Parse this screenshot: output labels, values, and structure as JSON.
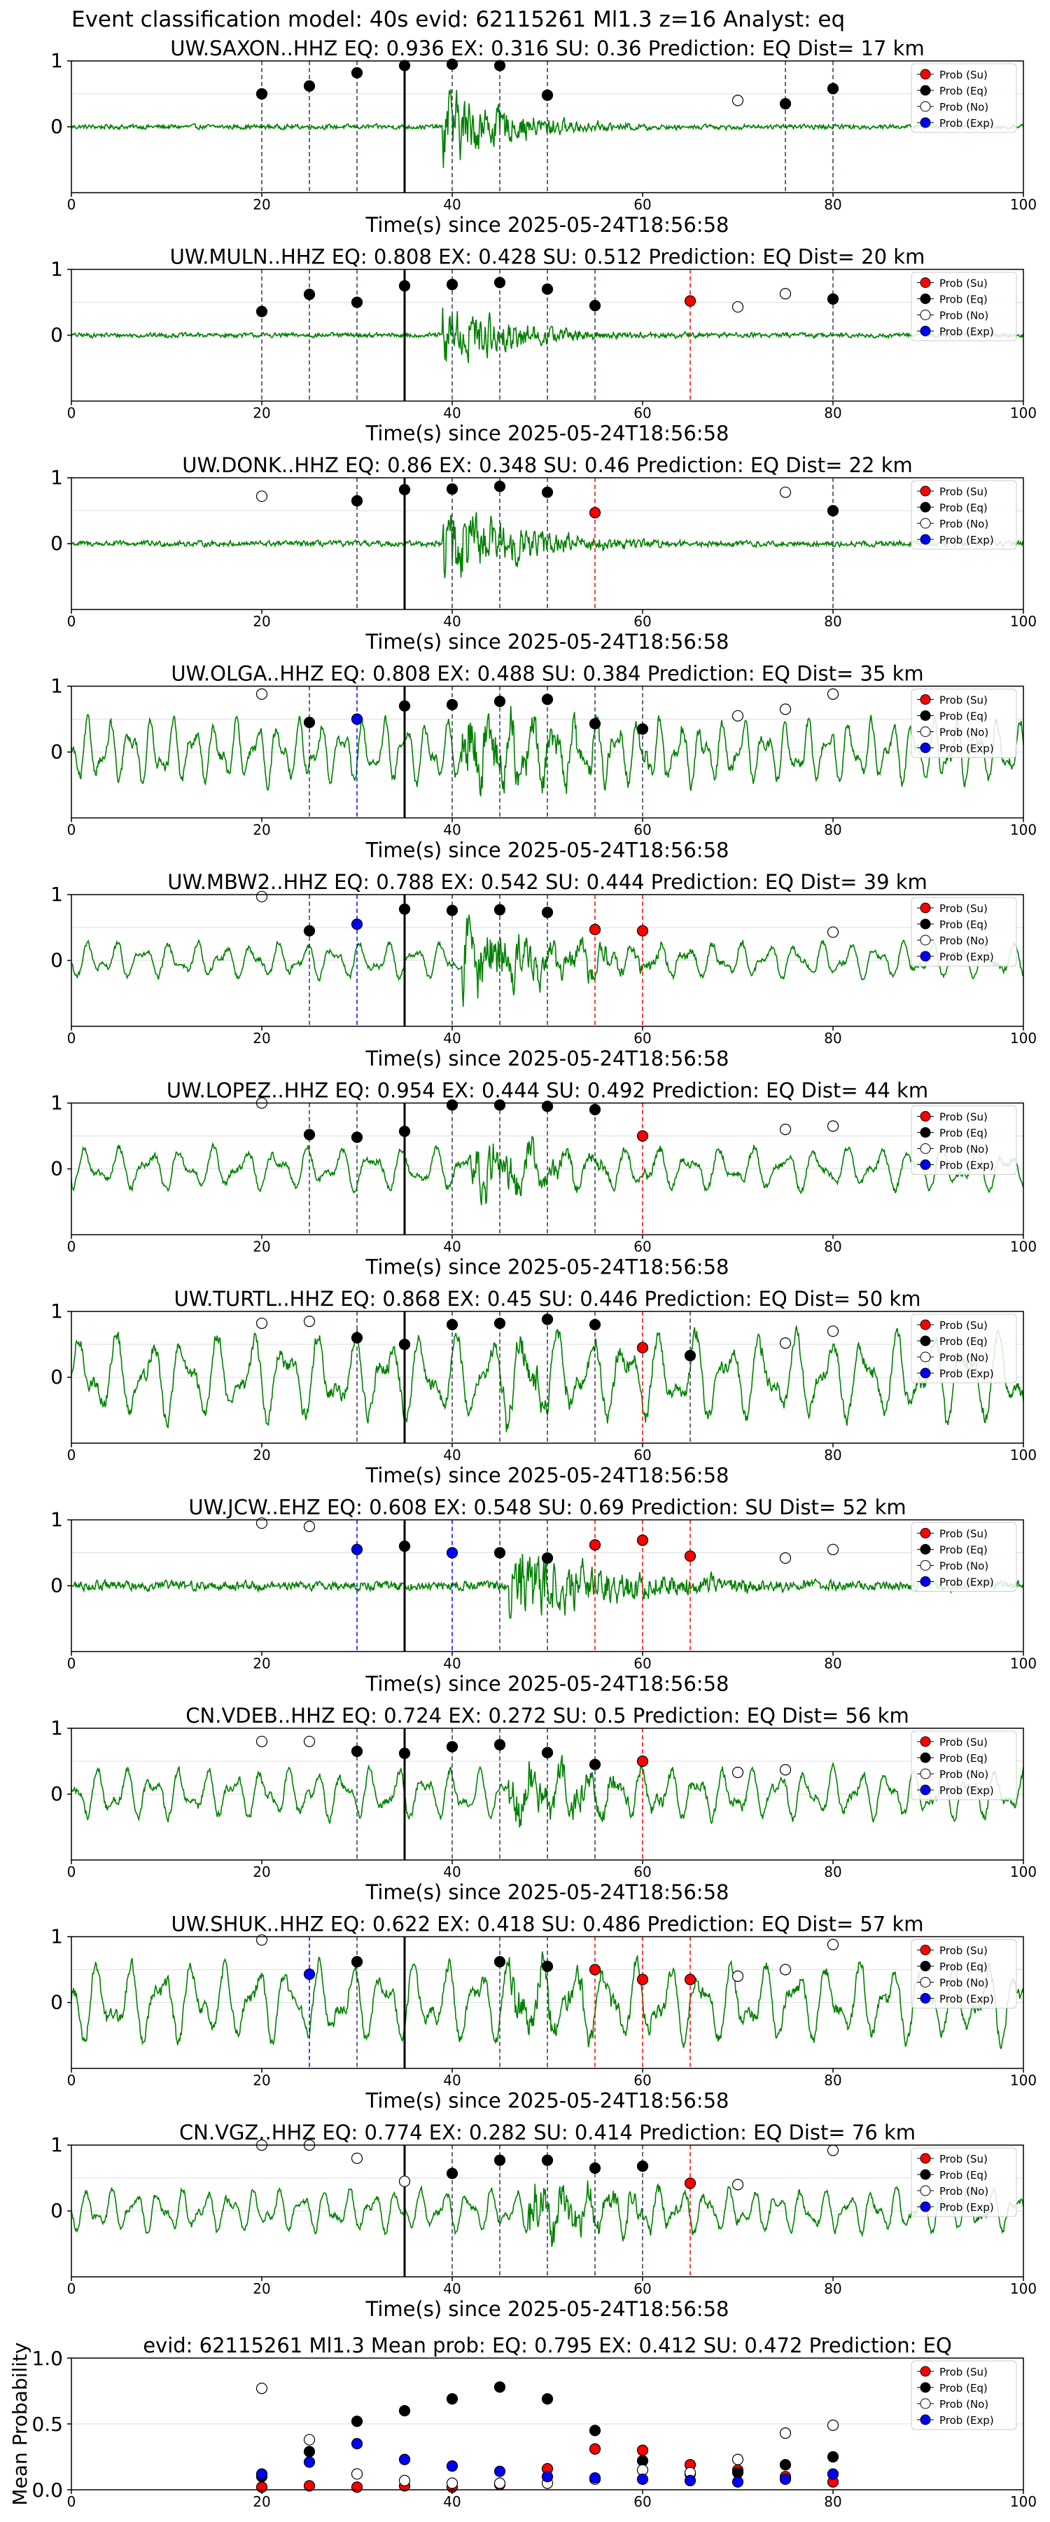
{
  "figure": {
    "suptitle": "Event classification model: 40s evid: 62115261 Ml1.3 z=16 Analyst: eq",
    "xlabel": "Time(s) since 2025-05-24T18:56:58"
  },
  "legend_labels": [
    "Prob (Su)",
    "Prob (Eq)",
    "Prob (No)",
    "Prob (Exp)"
  ],
  "colors": {
    "waveform": "#008000",
    "su": "#ff0000",
    "eq": "#000000",
    "no": "#ffffff",
    "exp": "#0000ff",
    "grid": "#dddddd"
  },
  "chart_data": [
    {
      "type": "line",
      "title": "UW.SAXON..HHZ   EQ: 0.936  EX: 0.316  SU: 0.36   Prediction: EQ    Dist= 17 km",
      "xlabel": "Time(s) since 2025-05-24T18:56:58",
      "xlim": [
        0,
        100
      ],
      "ylim": [
        -1,
        1
      ],
      "xticks": [
        0,
        20,
        40,
        60,
        80,
        100
      ],
      "yticks": [
        0,
        1
      ],
      "pick_time": 35,
      "noise_amp": 0.05,
      "event_amp": 0.9,
      "event_start": 39,
      "event_decay": 7,
      "wave_freq": 0,
      "points": [
        {
          "t": 20,
          "cls": "eq",
          "p": 0.5
        },
        {
          "t": 25,
          "cls": "eq",
          "p": 0.62
        },
        {
          "t": 30,
          "cls": "eq",
          "p": 0.82
        },
        {
          "t": 35,
          "cls": "eq",
          "p": 0.93
        },
        {
          "t": 40,
          "cls": "eq",
          "p": 0.95
        },
        {
          "t": 45,
          "cls": "eq",
          "p": 0.93
        },
        {
          "t": 50,
          "cls": "eq",
          "p": 0.48
        },
        {
          "t": 70,
          "cls": "no",
          "p": 0.4
        },
        {
          "t": 75,
          "cls": "eq",
          "p": 0.35
        },
        {
          "t": 80,
          "cls": "eq",
          "p": 0.58
        }
      ]
    },
    {
      "type": "line",
      "title": "UW.MULN..HHZ   EQ: 0.808  EX: 0.428  SU: 0.512   Prediction: EQ    Dist= 20 km",
      "xlabel": "Time(s) since 2025-05-24T18:56:58",
      "xlim": [
        0,
        100
      ],
      "ylim": [
        -1,
        1
      ],
      "xticks": [
        0,
        20,
        40,
        60,
        80,
        100
      ],
      "yticks": [
        0,
        1
      ],
      "pick_time": 35,
      "noise_amp": 0.05,
      "event_amp": 0.85,
      "event_start": 39,
      "event_decay": 7,
      "wave_freq": 0,
      "points": [
        {
          "t": 20,
          "cls": "eq",
          "p": 0.36
        },
        {
          "t": 25,
          "cls": "eq",
          "p": 0.62
        },
        {
          "t": 30,
          "cls": "eq",
          "p": 0.5
        },
        {
          "t": 35,
          "cls": "eq",
          "p": 0.75
        },
        {
          "t": 40,
          "cls": "eq",
          "p": 0.77
        },
        {
          "t": 45,
          "cls": "eq",
          "p": 0.8
        },
        {
          "t": 50,
          "cls": "eq",
          "p": 0.7
        },
        {
          "t": 55,
          "cls": "eq",
          "p": 0.45
        },
        {
          "t": 65,
          "cls": "su",
          "p": 0.52
        },
        {
          "t": 70,
          "cls": "no",
          "p": 0.43
        },
        {
          "t": 75,
          "cls": "no",
          "p": 0.63
        },
        {
          "t": 80,
          "cls": "eq",
          "p": 0.55
        }
      ]
    },
    {
      "type": "line",
      "title": "UW.DONK..HHZ   EQ: 0.86  EX: 0.348  SU: 0.46   Prediction: EQ    Dist= 22 km",
      "xlabel": "Time(s) since 2025-05-24T18:56:58",
      "xlim": [
        0,
        100
      ],
      "ylim": [
        -1,
        1
      ],
      "xticks": [
        0,
        20,
        40,
        60,
        80,
        100
      ],
      "yticks": [
        0,
        1
      ],
      "pick_time": 35,
      "noise_amp": 0.06,
      "event_amp": 0.95,
      "event_start": 39,
      "event_decay": 8,
      "wave_freq": 0,
      "points": [
        {
          "t": 20,
          "cls": "no",
          "p": 0.72
        },
        {
          "t": 30,
          "cls": "eq",
          "p": 0.65
        },
        {
          "t": 35,
          "cls": "eq",
          "p": 0.82
        },
        {
          "t": 40,
          "cls": "eq",
          "p": 0.83
        },
        {
          "t": 45,
          "cls": "eq",
          "p": 0.87
        },
        {
          "t": 50,
          "cls": "eq",
          "p": 0.78
        },
        {
          "t": 55,
          "cls": "su",
          "p": 0.47
        },
        {
          "t": 75,
          "cls": "no",
          "p": 0.78
        },
        {
          "t": 80,
          "cls": "eq",
          "p": 0.5
        }
      ]
    },
    {
      "type": "line",
      "title": "UW.OLGA..HHZ   EQ: 0.808  EX: 0.488  SU: 0.384   Prediction: EQ    Dist= 35 km",
      "xlabel": "Time(s) since 2025-05-24T18:56:58",
      "xlim": [
        0,
        100
      ],
      "ylim": [
        -1,
        1
      ],
      "xticks": [
        0,
        20,
        40,
        60,
        80,
        100
      ],
      "yticks": [
        0,
        1
      ],
      "pick_time": 35,
      "noise_amp": 0.45,
      "event_amp": 0.6,
      "event_start": 41,
      "event_decay": 12,
      "wave_freq": 0.45,
      "points": [
        {
          "t": 20,
          "cls": "no",
          "p": 0.88
        },
        {
          "t": 25,
          "cls": "eq",
          "p": 0.45
        },
        {
          "t": 30,
          "cls": "exp",
          "p": 0.5
        },
        {
          "t": 35,
          "cls": "eq",
          "p": 0.7
        },
        {
          "t": 40,
          "cls": "eq",
          "p": 0.72
        },
        {
          "t": 45,
          "cls": "eq",
          "p": 0.77
        },
        {
          "t": 50,
          "cls": "eq",
          "p": 0.8
        },
        {
          "t": 55,
          "cls": "eq",
          "p": 0.43
        },
        {
          "t": 60,
          "cls": "eq",
          "p": 0.35
        },
        {
          "t": 70,
          "cls": "no",
          "p": 0.55
        },
        {
          "t": 75,
          "cls": "no",
          "p": 0.65
        },
        {
          "t": 80,
          "cls": "no",
          "p": 0.88
        }
      ]
    },
    {
      "type": "line",
      "title": "UW.MBW2..HHZ   EQ: 0.788  EX: 0.542  SU: 0.444   Prediction: EQ    Dist= 39 km",
      "xlabel": "Time(s) since 2025-05-24T18:56:58",
      "xlim": [
        0,
        100
      ],
      "ylim": [
        -1,
        1
      ],
      "xticks": [
        0,
        20,
        40,
        60,
        80,
        100
      ],
      "yticks": [
        0,
        1
      ],
      "pick_time": 35,
      "noise_amp": 0.25,
      "event_amp": 0.8,
      "event_start": 41,
      "event_decay": 10,
      "wave_freq": 0.35,
      "points": [
        {
          "t": 20,
          "cls": "no",
          "p": 0.97
        },
        {
          "t": 25,
          "cls": "eq",
          "p": 0.45
        },
        {
          "t": 30,
          "cls": "exp",
          "p": 0.55
        },
        {
          "t": 35,
          "cls": "eq",
          "p": 0.78
        },
        {
          "t": 40,
          "cls": "eq",
          "p": 0.76
        },
        {
          "t": 45,
          "cls": "eq",
          "p": 0.77
        },
        {
          "t": 50,
          "cls": "eq",
          "p": 0.73
        },
        {
          "t": 55,
          "cls": "su",
          "p": 0.47
        },
        {
          "t": 60,
          "cls": "su",
          "p": 0.45
        },
        {
          "t": 80,
          "cls": "no",
          "p": 0.43
        }
      ]
    },
    {
      "type": "line",
      "title": "UW.LOPEZ..HHZ   EQ: 0.954  EX: 0.444  SU: 0.492   Prediction: EQ    Dist= 44 km",
      "xlabel": "Time(s) since 2025-05-24T18:56:58",
      "xlim": [
        0,
        100
      ],
      "ylim": [
        -1,
        1
      ],
      "xticks": [
        0,
        20,
        40,
        60,
        80,
        100
      ],
      "yticks": [
        0,
        1
      ],
      "pick_time": 35,
      "noise_amp": 0.3,
      "event_amp": 0.6,
      "event_start": 42,
      "event_decay": 8,
      "wave_freq": 0.3,
      "points": [
        {
          "t": 20,
          "cls": "no",
          "p": 1.0
        },
        {
          "t": 25,
          "cls": "eq",
          "p": 0.52
        },
        {
          "t": 30,
          "cls": "eq",
          "p": 0.48
        },
        {
          "t": 35,
          "cls": "eq",
          "p": 0.57
        },
        {
          "t": 40,
          "cls": "eq",
          "p": 0.97
        },
        {
          "t": 45,
          "cls": "eq",
          "p": 0.97
        },
        {
          "t": 50,
          "cls": "eq",
          "p": 0.95
        },
        {
          "t": 55,
          "cls": "eq",
          "p": 0.9
        },
        {
          "t": 60,
          "cls": "su",
          "p": 0.5
        },
        {
          "t": 75,
          "cls": "no",
          "p": 0.6
        },
        {
          "t": 80,
          "cls": "no",
          "p": 0.65
        }
      ]
    },
    {
      "type": "line",
      "title": "UW.TURTL..HHZ   EQ: 0.868  EX: 0.45  SU: 0.446   Prediction: EQ    Dist= 50 km",
      "xlabel": "Time(s) since 2025-05-24T18:56:58",
      "xlim": [
        0,
        100
      ],
      "ylim": [
        -1,
        1
      ],
      "xticks": [
        0,
        20,
        40,
        60,
        80,
        100
      ],
      "yticks": [
        0,
        1
      ],
      "pick_time": 35,
      "noise_amp": 0.6,
      "event_amp": 0.4,
      "event_start": 45,
      "event_decay": 10,
      "wave_freq": 0.28,
      "points": [
        {
          "t": 20,
          "cls": "no",
          "p": 0.82
        },
        {
          "t": 25,
          "cls": "no",
          "p": 0.85
        },
        {
          "t": 30,
          "cls": "eq",
          "p": 0.6
        },
        {
          "t": 35,
          "cls": "eq",
          "p": 0.5
        },
        {
          "t": 40,
          "cls": "eq",
          "p": 0.8
        },
        {
          "t": 45,
          "cls": "eq",
          "p": 0.82
        },
        {
          "t": 50,
          "cls": "eq",
          "p": 0.88
        },
        {
          "t": 55,
          "cls": "eq",
          "p": 0.8
        },
        {
          "t": 60,
          "cls": "su",
          "p": 0.45
        },
        {
          "t": 65,
          "cls": "eq",
          "p": 0.33
        },
        {
          "t": 75,
          "cls": "no",
          "p": 0.52
        },
        {
          "t": 80,
          "cls": "no",
          "p": 0.7
        }
      ]
    },
    {
      "type": "line",
      "title": "UW.JCW..EHZ   EQ: 0.608  EX: 0.548  SU: 0.69   Prediction: SU    Dist= 52 km",
      "xlabel": "Time(s) since 2025-05-24T18:56:58",
      "xlim": [
        0,
        100
      ],
      "ylim": [
        -1,
        1
      ],
      "xticks": [
        0,
        20,
        40,
        60,
        80,
        100
      ],
      "yticks": [
        0,
        1
      ],
      "pick_time": 35,
      "noise_amp": 0.1,
      "event_amp": 0.85,
      "event_start": 46,
      "event_decay": 12,
      "wave_freq": 0,
      "points": [
        {
          "t": 20,
          "cls": "no",
          "p": 0.95
        },
        {
          "t": 25,
          "cls": "no",
          "p": 0.9
        },
        {
          "t": 30,
          "cls": "exp",
          "p": 0.55
        },
        {
          "t": 35,
          "cls": "eq",
          "p": 0.6
        },
        {
          "t": 40,
          "cls": "exp",
          "p": 0.5
        },
        {
          "t": 45,
          "cls": "eq",
          "p": 0.5
        },
        {
          "t": 50,
          "cls": "eq",
          "p": 0.42
        },
        {
          "t": 55,
          "cls": "su",
          "p": 0.62
        },
        {
          "t": 60,
          "cls": "su",
          "p": 0.69
        },
        {
          "t": 65,
          "cls": "su",
          "p": 0.45
        },
        {
          "t": 75,
          "cls": "no",
          "p": 0.42
        },
        {
          "t": 80,
          "cls": "no",
          "p": 0.55
        }
      ]
    },
    {
      "type": "line",
      "title": "CN.VDEB..HHZ   EQ: 0.724  EX: 0.272  SU: 0.5   Prediction: EQ    Dist= 56 km",
      "xlabel": "Time(s) since 2025-05-24T18:56:58",
      "xlim": [
        0,
        100
      ],
      "ylim": [
        -1,
        1
      ],
      "xticks": [
        0,
        20,
        40,
        60,
        80,
        100
      ],
      "yticks": [
        0,
        1
      ],
      "pick_time": 35,
      "noise_amp": 0.35,
      "event_amp": 0.6,
      "event_start": 46,
      "event_decay": 9,
      "wave_freq": 0.35,
      "points": [
        {
          "t": 20,
          "cls": "no",
          "p": 0.8
        },
        {
          "t": 25,
          "cls": "no",
          "p": 0.8
        },
        {
          "t": 30,
          "cls": "eq",
          "p": 0.65
        },
        {
          "t": 35,
          "cls": "eq",
          "p": 0.62
        },
        {
          "t": 40,
          "cls": "eq",
          "p": 0.72
        },
        {
          "t": 45,
          "cls": "eq",
          "p": 0.75
        },
        {
          "t": 50,
          "cls": "eq",
          "p": 0.63
        },
        {
          "t": 55,
          "cls": "eq",
          "p": 0.45
        },
        {
          "t": 60,
          "cls": "su",
          "p": 0.5
        },
        {
          "t": 70,
          "cls": "no",
          "p": 0.33
        },
        {
          "t": 75,
          "cls": "no",
          "p": 0.37
        }
      ]
    },
    {
      "type": "line",
      "title": "UW.SHUK..HHZ   EQ: 0.622  EX: 0.418  SU: 0.486   Prediction: EQ    Dist= 57 km",
      "xlabel": "Time(s) since 2025-05-24T18:56:58",
      "xlim": [
        0,
        100
      ],
      "ylim": [
        -1,
        1
      ],
      "xticks": [
        0,
        20,
        40,
        60,
        80,
        100
      ],
      "yticks": [
        0,
        1
      ],
      "pick_time": 35,
      "noise_amp": 0.55,
      "event_amp": 0.45,
      "event_start": 46,
      "event_decay": 8,
      "wave_freq": 0.3,
      "points": [
        {
          "t": 20,
          "cls": "no",
          "p": 0.95
        },
        {
          "t": 25,
          "cls": "exp",
          "p": 0.43
        },
        {
          "t": 30,
          "cls": "eq",
          "p": 0.62
        },
        {
          "t": 45,
          "cls": "eq",
          "p": 0.62
        },
        {
          "t": 50,
          "cls": "eq",
          "p": 0.55
        },
        {
          "t": 55,
          "cls": "su",
          "p": 0.5
        },
        {
          "t": 60,
          "cls": "su",
          "p": 0.35
        },
        {
          "t": 65,
          "cls": "su",
          "p": 0.35
        },
        {
          "t": 70,
          "cls": "no",
          "p": 0.4
        },
        {
          "t": 75,
          "cls": "no",
          "p": 0.5
        },
        {
          "t": 80,
          "cls": "no",
          "p": 0.88
        }
      ]
    },
    {
      "type": "line",
      "title": "CN.VGZ..HHZ   EQ: 0.774  EX: 0.282  SU: 0.414   Prediction: EQ    Dist= 76 km",
      "xlabel": "Time(s) since 2025-05-24T18:56:58",
      "xlim": [
        0,
        100
      ],
      "ylim": [
        -1,
        1
      ],
      "xticks": [
        0,
        20,
        40,
        60,
        80,
        100
      ],
      "yticks": [
        0,
        1
      ],
      "pick_time": 35,
      "noise_amp": 0.3,
      "event_amp": 0.5,
      "event_start": 48,
      "event_decay": 10,
      "wave_freq": 0.4,
      "points": [
        {
          "t": 20,
          "cls": "no",
          "p": 1.0
        },
        {
          "t": 25,
          "cls": "no",
          "p": 1.0
        },
        {
          "t": 30,
          "cls": "no",
          "p": 0.8
        },
        {
          "t": 35,
          "cls": "no",
          "p": 0.45
        },
        {
          "t": 40,
          "cls": "eq",
          "p": 0.57
        },
        {
          "t": 45,
          "cls": "eq",
          "p": 0.77
        },
        {
          "t": 50,
          "cls": "eq",
          "p": 0.77
        },
        {
          "t": 55,
          "cls": "eq",
          "p": 0.65
        },
        {
          "t": 60,
          "cls": "eq",
          "p": 0.68
        },
        {
          "t": 65,
          "cls": "su",
          "p": 0.42
        },
        {
          "t": 70,
          "cls": "no",
          "p": 0.4
        },
        {
          "t": 80,
          "cls": "no",
          "p": 0.92
        }
      ]
    },
    {
      "type": "scatter",
      "title": "evid: 62115261  Ml1.3   Mean prob:   EQ: 0.795  EX: 0.412  SU: 0.472   Prediction: EQ",
      "xlabel": "",
      "ylabel": "Mean Probability",
      "xlim": [
        0,
        100
      ],
      "ylim": [
        0,
        1
      ],
      "xticks": [
        0,
        20,
        40,
        60,
        80,
        100
      ],
      "yticks": [
        0.0,
        0.5,
        1.0
      ],
      "ytick_labels": [
        "0.0",
        "0.5",
        "1.0"
      ],
      "series": [
        {
          "name": "Prob (Su)",
          "cls": "su",
          "x": [
            20,
            25,
            30,
            35,
            40,
            45,
            50,
            55,
            60,
            65,
            70,
            75,
            80
          ],
          "values": [
            0.02,
            0.03,
            0.02,
            0.03,
            0.02,
            0.04,
            0.16,
            0.31,
            0.3,
            0.19,
            0.15,
            0.1,
            0.06
          ]
        },
        {
          "name": "Prob (Eq)",
          "cls": "eq",
          "x": [
            20,
            25,
            30,
            35,
            40,
            45,
            50,
            55,
            60,
            65,
            70,
            75,
            80
          ],
          "values": [
            0.1,
            0.29,
            0.52,
            0.6,
            0.69,
            0.78,
            0.69,
            0.45,
            0.22,
            0.12,
            0.13,
            0.19,
            0.25
          ]
        },
        {
          "name": "Prob (No)",
          "cls": "no",
          "x": [
            20,
            25,
            30,
            35,
            40,
            45,
            50,
            55,
            60,
            65,
            70,
            75,
            80
          ],
          "values": [
            0.77,
            0.38,
            0.12,
            0.07,
            0.05,
            0.05,
            0.05,
            0.08,
            0.15,
            0.13,
            0.23,
            0.43,
            0.49
          ]
        },
        {
          "name": "Prob (Exp)",
          "cls": "exp",
          "x": [
            20,
            25,
            30,
            35,
            40,
            45,
            50,
            55,
            60,
            65,
            70,
            75,
            80
          ],
          "values": [
            0.12,
            0.21,
            0.35,
            0.23,
            0.18,
            0.14,
            0.1,
            0.09,
            0.08,
            0.07,
            0.06,
            0.08,
            0.12
          ]
        }
      ]
    }
  ]
}
